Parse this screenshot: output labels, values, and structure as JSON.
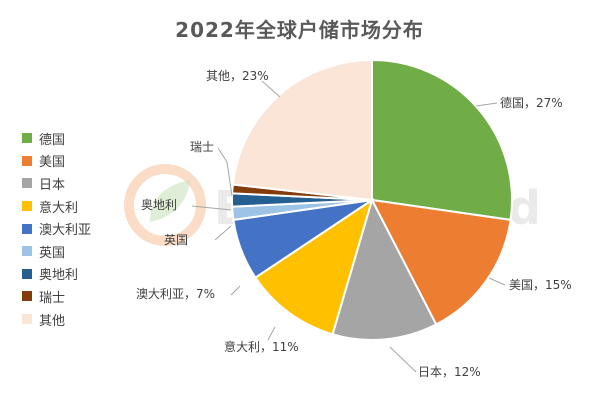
{
  "chart_data": {
    "type": "pie",
    "title": "2022年全球户储市场分布",
    "categories": [
      "德国",
      "美国",
      "日本",
      "意大利",
      "澳大利亚",
      "英国",
      "奥地利",
      "瑞士",
      "其他"
    ],
    "values": [
      27,
      15,
      12,
      11,
      7,
      1.5,
      1.5,
      1,
      23
    ],
    "colors": [
      "#70ad47",
      "#ed7d31",
      "#a5a5a5",
      "#ffc000",
      "#4472c4",
      "#9dc3e6",
      "#255e91",
      "#843c0c",
      "#fbe5d6"
    ],
    "data_labels": [
      "德国，27%",
      "美国，15%",
      "日本，12%",
      "意大利，11%",
      "澳大利亚，7%",
      "英国",
      "奥地利",
      "瑞士",
      "其他，23%"
    ],
    "legend_position": "left"
  },
  "watermark": {
    "text": "EnergyTrend",
    "colors": [
      "#f4b183",
      "#c5e0b4"
    ]
  }
}
